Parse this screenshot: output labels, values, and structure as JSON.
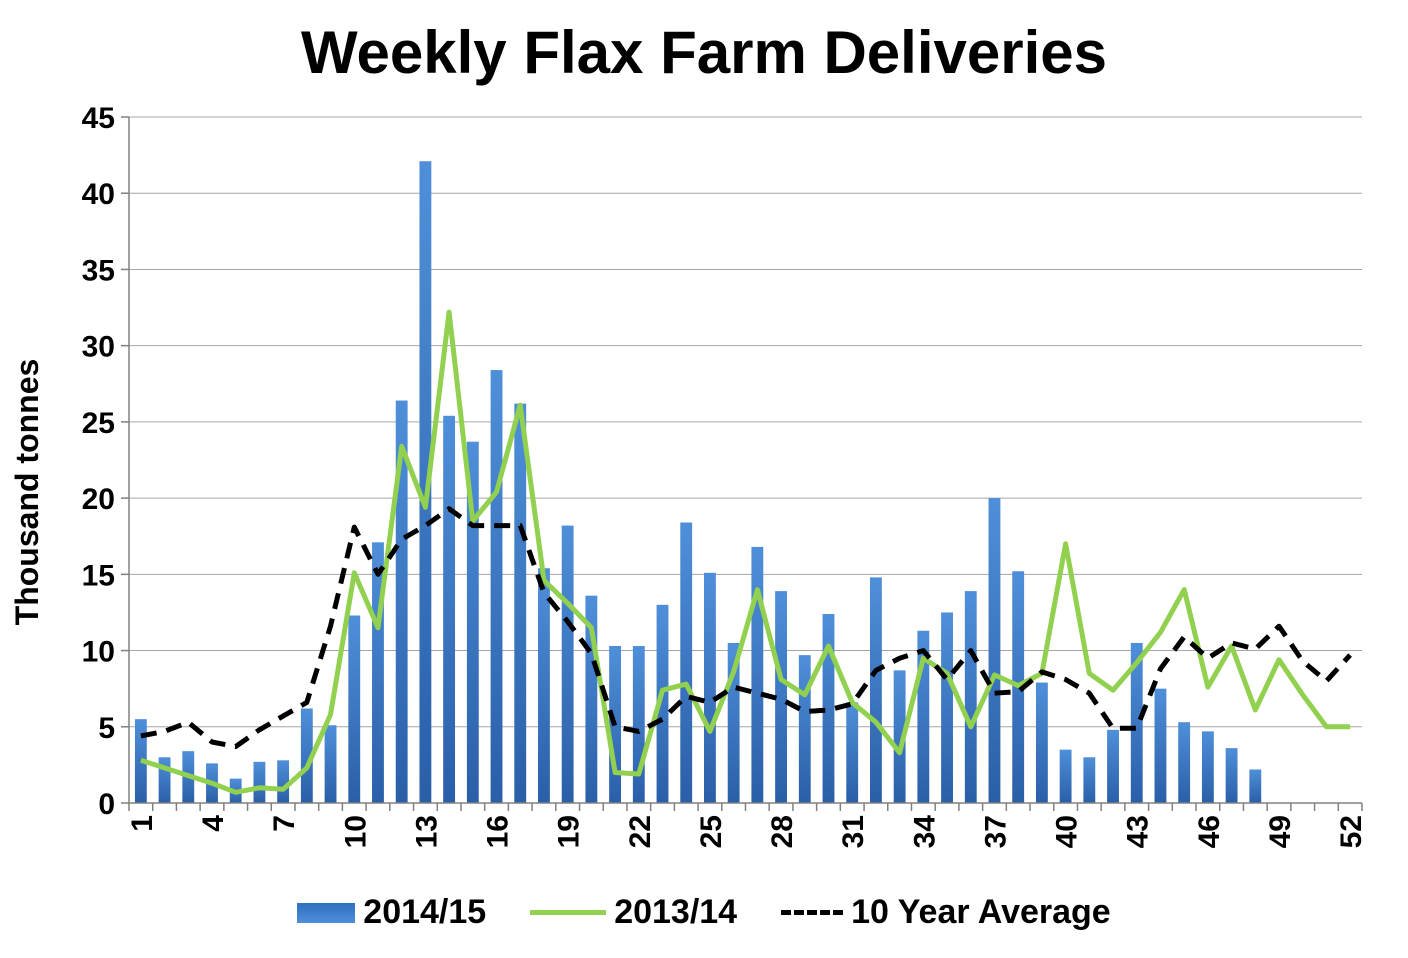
{
  "chart_data": {
    "type": "bar",
    "title": "Weekly Flax Farm Deliveries",
    "ylabel": "Thousand tonnes",
    "xlabel": "",
    "ylim": [
      0,
      45
    ],
    "yticks": [
      0,
      5,
      10,
      15,
      20,
      25,
      30,
      35,
      40,
      45
    ],
    "x": [
      1,
      2,
      3,
      4,
      5,
      6,
      7,
      8,
      9,
      10,
      11,
      12,
      13,
      14,
      15,
      16,
      17,
      18,
      19,
      20,
      21,
      22,
      23,
      24,
      25,
      26,
      27,
      28,
      29,
      30,
      31,
      32,
      33,
      34,
      35,
      36,
      37,
      38,
      39,
      40,
      41,
      42,
      43,
      44,
      45,
      46,
      47,
      48,
      49,
      50,
      51,
      52
    ],
    "xtick_labels": [
      "1",
      "4",
      "7",
      "10",
      "13",
      "16",
      "19",
      "22",
      "25",
      "28",
      "31",
      "34",
      "37",
      "40",
      "43",
      "46",
      "49",
      "52"
    ],
    "grid": "horizontal",
    "legend_position": "bottom",
    "series": [
      {
        "name": "2014/15",
        "type": "bar",
        "color": "#3a78c8",
        "values": [
          5.5,
          3.0,
          3.4,
          2.6,
          1.6,
          2.7,
          2.8,
          6.2,
          5.1,
          12.3,
          17.1,
          26.4,
          42.1,
          25.4,
          23.7,
          28.4,
          26.2,
          15.4,
          18.2,
          13.6,
          10.3,
          10.3,
          13.0,
          18.4,
          15.1,
          10.5,
          16.8,
          13.9,
          9.7,
          12.4,
          6.6,
          14.8,
          8.7,
          11.3,
          12.5,
          13.9,
          20.0,
          15.2,
          7.9,
          3.5,
          3.0,
          4.8,
          10.5,
          7.5,
          5.3,
          4.7,
          3.6,
          2.2,
          null,
          null,
          null,
          null
        ]
      },
      {
        "name": "2013/14",
        "type": "line",
        "color": "#92d050",
        "values": [
          2.8,
          2.3,
          1.8,
          1.3,
          0.7,
          1.0,
          0.9,
          2.3,
          5.8,
          15.1,
          11.5,
          23.4,
          19.4,
          32.2,
          18.5,
          20.4,
          26.1,
          14.6,
          13.1,
          11.5,
          2.0,
          1.9,
          7.4,
          7.8,
          4.7,
          8.6,
          14.0,
          8.1,
          7.1,
          10.3,
          6.6,
          5.3,
          3.3,
          9.5,
          8.5,
          5.0,
          8.4,
          7.7,
          8.5,
          17.0,
          8.5,
          7.4,
          9.2,
          11.2,
          14.0,
          7.6,
          10.3,
          6.1,
          9.4,
          7.1,
          5.0,
          5.0
        ]
      },
      {
        "name": "10 Year Average",
        "type": "line",
        "style": "dashed",
        "color": "#000000",
        "values": [
          4.4,
          4.7,
          5.3,
          4.0,
          3.7,
          4.8,
          5.7,
          6.6,
          11.6,
          18.1,
          15.0,
          17.3,
          18.2,
          19.3,
          18.2,
          18.2,
          18.2,
          13.8,
          11.9,
          9.8,
          5.0,
          4.7,
          5.5,
          7.0,
          6.6,
          7.6,
          7.2,
          6.8,
          6.0,
          6.1,
          6.5,
          8.7,
          9.5,
          10.0,
          8.1,
          10.0,
          7.2,
          7.3,
          8.6,
          8.1,
          7.2,
          4.9,
          4.9,
          8.8,
          10.9,
          9.5,
          10.5,
          10.1,
          11.6,
          9.3,
          8.0,
          9.7
        ]
      }
    ]
  }
}
